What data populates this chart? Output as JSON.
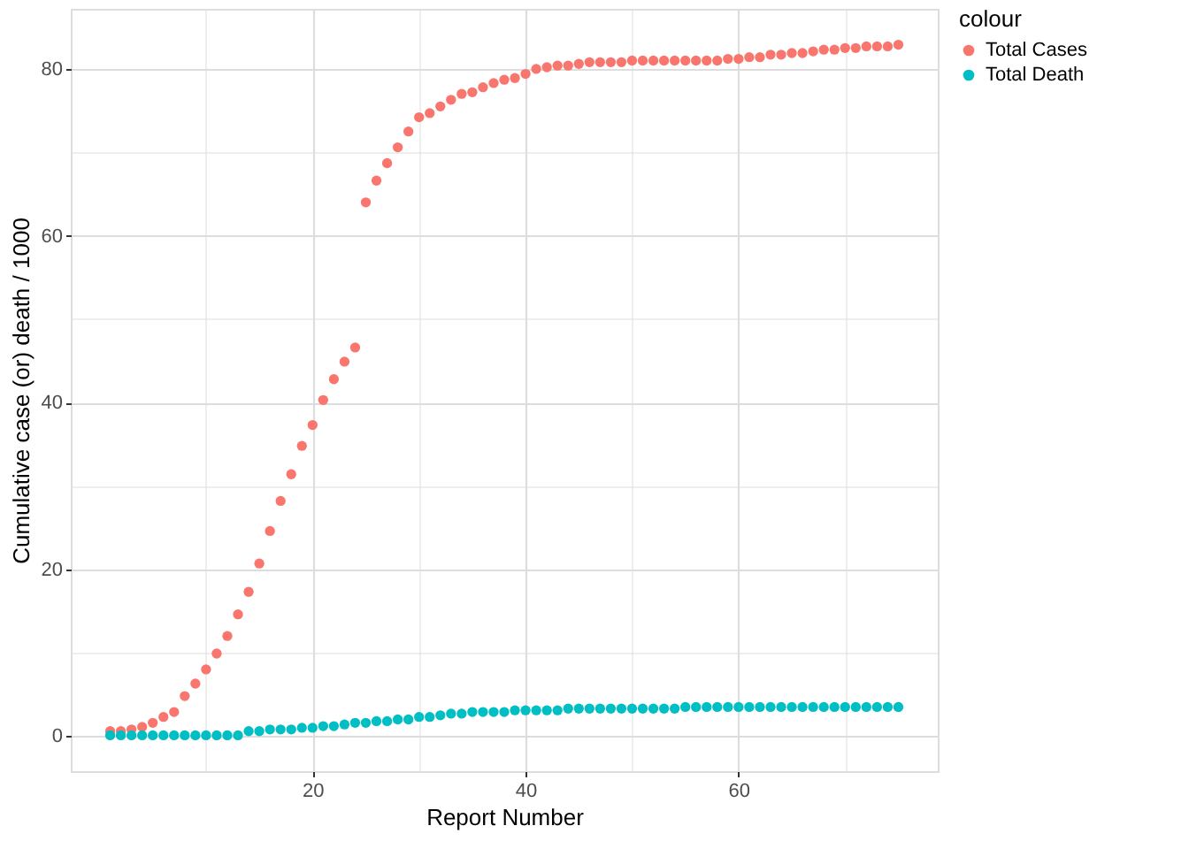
{
  "chart_data": {
    "type": "scatter",
    "xlabel": "Report Number",
    "ylabel": "Cumulative case (or) death / 1000",
    "legend_title": "colour",
    "legend": "right",
    "grid": true,
    "marker": "circle",
    "x": [
      1,
      2,
      3,
      4,
      5,
      6,
      7,
      8,
      9,
      10,
      11,
      12,
      13,
      14,
      15,
      16,
      17,
      18,
      19,
      20,
      21,
      22,
      23,
      24,
      25,
      26,
      27,
      28,
      29,
      30,
      31,
      32,
      33,
      34,
      35,
      36,
      37,
      38,
      39,
      40,
      41,
      42,
      43,
      44,
      45,
      46,
      47,
      48,
      49,
      50,
      51,
      52,
      53,
      54,
      55,
      56,
      57,
      58,
      59,
      60,
      61,
      62,
      63,
      64,
      65,
      66,
      67,
      68,
      69,
      70,
      71,
      72,
      73,
      74,
      75
    ],
    "xlim": [
      -2.7,
      78.7
    ],
    "xticks": [
      {
        "value": 10,
        "label": null
      },
      20,
      {
        "value": 30,
        "label": null
      },
      40,
      {
        "value": 50,
        "label": null
      },
      60,
      {
        "value": 70,
        "label": null
      }
    ],
    "ylim": [
      -4.2,
      87.2
    ],
    "yticks": [
      0,
      {
        "value": 10,
        "label": null
      },
      20,
      {
        "value": 30,
        "label": null
      },
      40,
      {
        "value": 50,
        "label": null
      },
      60,
      {
        "value": 70,
        "label": null
      },
      80
    ],
    "series": [
      {
        "name": "Total Cases",
        "color": "#f8766d",
        "values": [
          0.6,
          0.6,
          0.8,
          1.1,
          1.6,
          2.3,
          2.9,
          4.8,
          6.3,
          8.0,
          9.9,
          12.0,
          14.6,
          17.3,
          20.7,
          24.6,
          28.2,
          31.4,
          34.8,
          37.3,
          40.3,
          42.8,
          44.9,
          46.6,
          64.0,
          66.6,
          68.7,
          70.6,
          72.5,
          74.2,
          74.7,
          75.5,
          76.3,
          77.0,
          77.2,
          77.8,
          78.3,
          78.7,
          78.9,
          79.4,
          80.0,
          80.2,
          80.4,
          80.4,
          80.6,
          80.8,
          80.8,
          80.8,
          80.8,
          81.0,
          81.0,
          81.0,
          81.0,
          81.0,
          81.0,
          81.0,
          81.0,
          81.0,
          81.2,
          81.2,
          81.4,
          81.4,
          81.7,
          81.7,
          81.9,
          81.9,
          82.1,
          82.3,
          82.3,
          82.5,
          82.5,
          82.7,
          82.7,
          82.7,
          82.9
        ]
      },
      {
        "name": "Total Death",
        "color": "#00bfc4",
        "values": [
          0.1,
          0.1,
          0.1,
          0.1,
          0.1,
          0.1,
          0.1,
          0.1,
          0.1,
          0.1,
          0.1,
          0.1,
          0.1,
          0.6,
          0.6,
          0.8,
          0.8,
          0.8,
          1.0,
          1.0,
          1.2,
          1.2,
          1.4,
          1.6,
          1.6,
          1.8,
          1.8,
          2.0,
          2.0,
          2.3,
          2.3,
          2.5,
          2.7,
          2.7,
          2.9,
          2.9,
          2.9,
          2.9,
          3.1,
          3.1,
          3.1,
          3.1,
          3.1,
          3.3,
          3.3,
          3.3,
          3.3,
          3.3,
          3.3,
          3.3,
          3.3,
          3.3,
          3.3,
          3.3,
          3.5,
          3.5,
          3.5,
          3.5,
          3.5,
          3.5,
          3.5,
          3.5,
          3.5,
          3.5,
          3.5,
          3.5,
          3.5,
          3.5,
          3.5,
          3.5,
          3.5,
          3.5,
          3.5,
          3.5,
          3.5
        ]
      }
    ]
  }
}
